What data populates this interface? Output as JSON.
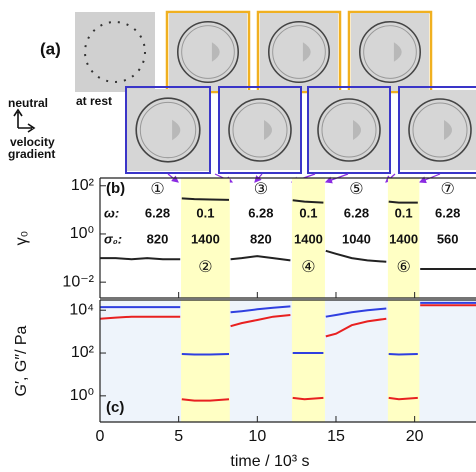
{
  "panel_a": {
    "label": "(a)",
    "at_rest": "at rest",
    "neutral": "neutral",
    "velocity": "velocity",
    "gradient": "gradient"
  },
  "chart_data": [
    {
      "type": "line",
      "panel_label": "(b)",
      "y_label": "γ₀",
      "log_y": true,
      "xlim": [
        0,
        23.9
      ],
      "xticks": [
        0,
        5,
        10,
        15,
        20
      ],
      "ylim": [
        0.0022,
        210
      ],
      "yticks": [
        {
          "value": 0.01,
          "label": "10⁻²"
        },
        {
          "value": 1,
          "label": "10⁰"
        },
        {
          "value": 100,
          "label": "10²"
        }
      ],
      "x": [
        0,
        1,
        2,
        3,
        4,
        5.1,
        5.13,
        5.2,
        6,
        7,
        8.2,
        8.23,
        8.3,
        9,
        10,
        11,
        12.1,
        12.15,
        12.25,
        13,
        14.2,
        14.25,
        14.35,
        15,
        16,
        17,
        18.2,
        18.25,
        18.35,
        19,
        20.2,
        20.25,
        20.35,
        21,
        22,
        23,
        23.9
      ],
      "series": [
        {
          "color": "#222222",
          "values": [
            0.1,
            0.1,
            0.09,
            0.1,
            0.09,
            0.09,
            null,
            30,
            28,
            27,
            26,
            null,
            0.09,
            0.1,
            0.12,
            0.1,
            0.08,
            null,
            25,
            22,
            20,
            null,
            0.2,
            0.15,
            0.1,
            0.08,
            0.07,
            null,
            22,
            20,
            20,
            null,
            0.035,
            0.035,
            0.035,
            0.035,
            0.035
          ]
        }
      ],
      "parameter_labels": {
        "omega": "ω:",
        "sigma": "σ₀:"
      },
      "segments": [
        {
          "number": "①",
          "omega": 6.28,
          "sigma": 820,
          "t": [
            0,
            5.15
          ],
          "highlight": false
        },
        {
          "number": "②",
          "omega": 0.1,
          "sigma": 1400,
          "t": [
            5.15,
            8.25
          ],
          "highlight": true
        },
        {
          "number": "③",
          "omega": 6.28,
          "sigma": 820,
          "t": [
            8.25,
            12.2
          ],
          "highlight": false
        },
        {
          "number": "④",
          "omega": 0.1,
          "sigma": 1400,
          "t": [
            12.2,
            14.3
          ],
          "highlight": true
        },
        {
          "number": "⑤",
          "omega": 6.28,
          "sigma": 1040,
          "t": [
            14.3,
            18.3
          ],
          "highlight": false
        },
        {
          "number": "⑥",
          "omega": 0.1,
          "sigma": 1400,
          "t": [
            18.3,
            20.3
          ],
          "highlight": true
        },
        {
          "number": "⑦",
          "omega": 6.28,
          "sigma": 560,
          "t": [
            20.3,
            23.9
          ],
          "highlight": false
        }
      ]
    },
    {
      "type": "line",
      "panel_label": "(c)",
      "y_label": "G′, G″/ Pa",
      "x_label": "time / 10³ s",
      "log_y": true,
      "xlim": [
        0,
        23.9
      ],
      "xticks": [
        0,
        5,
        10,
        15,
        20
      ],
      "ylim": [
        0.06,
        30000
      ],
      "yticks": [
        {
          "value": 1,
          "label": "10⁰"
        },
        {
          "value": 100,
          "label": "10²"
        },
        {
          "value": 10000,
          "label": "10⁴"
        }
      ],
      "x": [
        0,
        1,
        2,
        3,
        4,
        5.1,
        5.13,
        5.2,
        6,
        7,
        8.2,
        8.23,
        8.3,
        9,
        10,
        11,
        12.1,
        12.15,
        12.25,
        13,
        14.2,
        14.25,
        14.35,
        15,
        16,
        17,
        18.2,
        18.25,
        18.35,
        19,
        20.2,
        20.25,
        20.35,
        21,
        22,
        23,
        23.9
      ],
      "series": [
        {
          "color": "#2f3fe0",
          "values": [
            14000,
            14000,
            14000,
            14000,
            14000,
            14000,
            null,
            90,
            85,
            85,
            90,
            null,
            8000,
            9000,
            11000,
            13000,
            15000,
            null,
            100,
            100,
            100,
            null,
            5000,
            6000,
            8000,
            10000,
            12000,
            null,
            90,
            85,
            90,
            null,
            22000,
            22000,
            22000,
            22000,
            22000
          ]
        },
        {
          "color": "#e82020",
          "values": [
            4000,
            4500,
            5000,
            5000,
            5000,
            5000,
            null,
            0.7,
            0.6,
            0.6,
            0.7,
            null,
            1800,
            2500,
            3500,
            5000,
            6000,
            null,
            0.8,
            0.7,
            0.8,
            null,
            600,
            800,
            2000,
            3000,
            4000,
            null,
            0.8,
            0.7,
            0.8,
            null,
            17000,
            17000,
            17000,
            17000,
            17000
          ]
        }
      ]
    }
  ]
}
